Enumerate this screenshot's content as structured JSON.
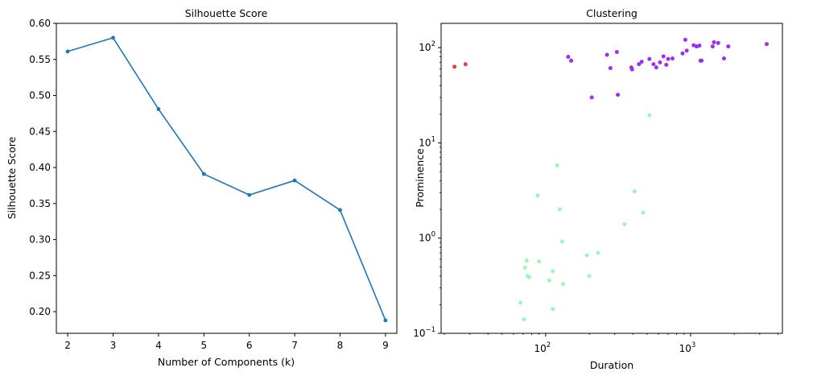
{
  "chart_data": [
    {
      "type": "line",
      "title": "Silhouette Score",
      "xlabel": "Number of Components (k)",
      "ylabel": "Silhouette Score",
      "x": [
        2,
        3,
        4,
        5,
        6,
        7,
        8,
        9
      ],
      "y": [
        0.561,
        0.58,
        0.481,
        0.391,
        0.362,
        0.382,
        0.341,
        0.188
      ],
      "xlim": [
        1.75,
        9.25
      ],
      "ylim": [
        0.17,
        0.6
      ],
      "xticks": [
        2,
        3,
        4,
        5,
        6,
        7,
        8,
        9
      ],
      "xtick_labels": [
        "2",
        "3",
        "4",
        "5",
        "6",
        "7",
        "8",
        "9"
      ],
      "yticks": [
        0.2,
        0.25,
        0.3,
        0.35,
        0.4,
        0.45,
        0.5,
        0.55,
        0.6
      ],
      "ytick_labels": [
        "0.20",
        "0.25",
        "0.30",
        "0.35",
        "0.40",
        "0.45",
        "0.50",
        "0.55",
        "0.60"
      ],
      "color": "#1f77b4",
      "grid": false
    },
    {
      "type": "scatter",
      "title": "Clustering",
      "xlabel": "Duration",
      "ylabel": "Prominence",
      "xscale": "log",
      "yscale": "log",
      "xlim": [
        19,
        4300
      ],
      "ylim": [
        0.1,
        180
      ],
      "xticks": [
        100,
        1000
      ],
      "xtick_labels": [
        "10",
        "10"
      ],
      "xtick_exponents": [
        "2",
        "3"
      ],
      "yticks": [
        0.1,
        1,
        10,
        100
      ],
      "ytick_labels": [
        "10",
        "10",
        "10",
        "10"
      ],
      "ytick_exponents": [
        "−1",
        "0",
        "1",
        "2"
      ],
      "grid": false,
      "series": [
        {
          "color": "#ee3b3b",
          "points": [
            {
              "x": 23.5,
              "y": 63
            },
            {
              "x": 28,
              "y": 67
            }
          ]
        },
        {
          "color": "#9b30f0",
          "points": [
            {
              "x": 143,
              "y": 80
            },
            {
              "x": 150,
              "y": 73
            },
            {
              "x": 208,
              "y": 30
            },
            {
              "x": 265,
              "y": 84
            },
            {
              "x": 280,
              "y": 61
            },
            {
              "x": 310,
              "y": 90
            },
            {
              "x": 315,
              "y": 32
            },
            {
              "x": 390,
              "y": 62
            },
            {
              "x": 395,
              "y": 59
            },
            {
              "x": 440,
              "y": 67
            },
            {
              "x": 460,
              "y": 71
            },
            {
              "x": 520,
              "y": 76
            },
            {
              "x": 555,
              "y": 67
            },
            {
              "x": 580,
              "y": 62
            },
            {
              "x": 615,
              "y": 70
            },
            {
              "x": 650,
              "y": 81
            },
            {
              "x": 680,
              "y": 66
            },
            {
              "x": 700,
              "y": 76
            },
            {
              "x": 750,
              "y": 77
            },
            {
              "x": 880,
              "y": 87
            },
            {
              "x": 920,
              "y": 121
            },
            {
              "x": 940,
              "y": 93
            },
            {
              "x": 1050,
              "y": 106
            },
            {
              "x": 1100,
              "y": 103
            },
            {
              "x": 1150,
              "y": 105
            },
            {
              "x": 1170,
              "y": 73
            },
            {
              "x": 1190,
              "y": 73
            },
            {
              "x": 1420,
              "y": 103
            },
            {
              "x": 1450,
              "y": 114
            },
            {
              "x": 1550,
              "y": 112
            },
            {
              "x": 1700,
              "y": 77
            },
            {
              "x": 1820,
              "y": 103
            },
            {
              "x": 3350,
              "y": 109
            }
          ]
        },
        {
          "color": "#9afab4",
          "points": [
            {
              "x": 520,
              "y": 19.5
            },
            {
              "x": 120,
              "y": 5.8
            },
            {
              "x": 410,
              "y": 3.1
            },
            {
              "x": 88,
              "y": 2.8
            },
            {
              "x": 125,
              "y": 2.0
            },
            {
              "x": 470,
              "y": 1.85
            },
            {
              "x": 350,
              "y": 1.4
            },
            {
              "x": 130,
              "y": 0.92
            },
            {
              "x": 230,
              "y": 0.7
            },
            {
              "x": 193,
              "y": 0.66
            },
            {
              "x": 74,
              "y": 0.58
            },
            {
              "x": 90,
              "y": 0.57
            },
            {
              "x": 72,
              "y": 0.49
            },
            {
              "x": 112,
              "y": 0.45
            },
            {
              "x": 200,
              "y": 0.4
            },
            {
              "x": 75,
              "y": 0.4
            },
            {
              "x": 77,
              "y": 0.39
            },
            {
              "x": 106,
              "y": 0.36
            },
            {
              "x": 132,
              "y": 0.33
            },
            {
              "x": 67,
              "y": 0.21
            },
            {
              "x": 112,
              "y": 0.18
            },
            {
              "x": 71,
              "y": 0.14
            }
          ]
        }
      ]
    }
  ]
}
